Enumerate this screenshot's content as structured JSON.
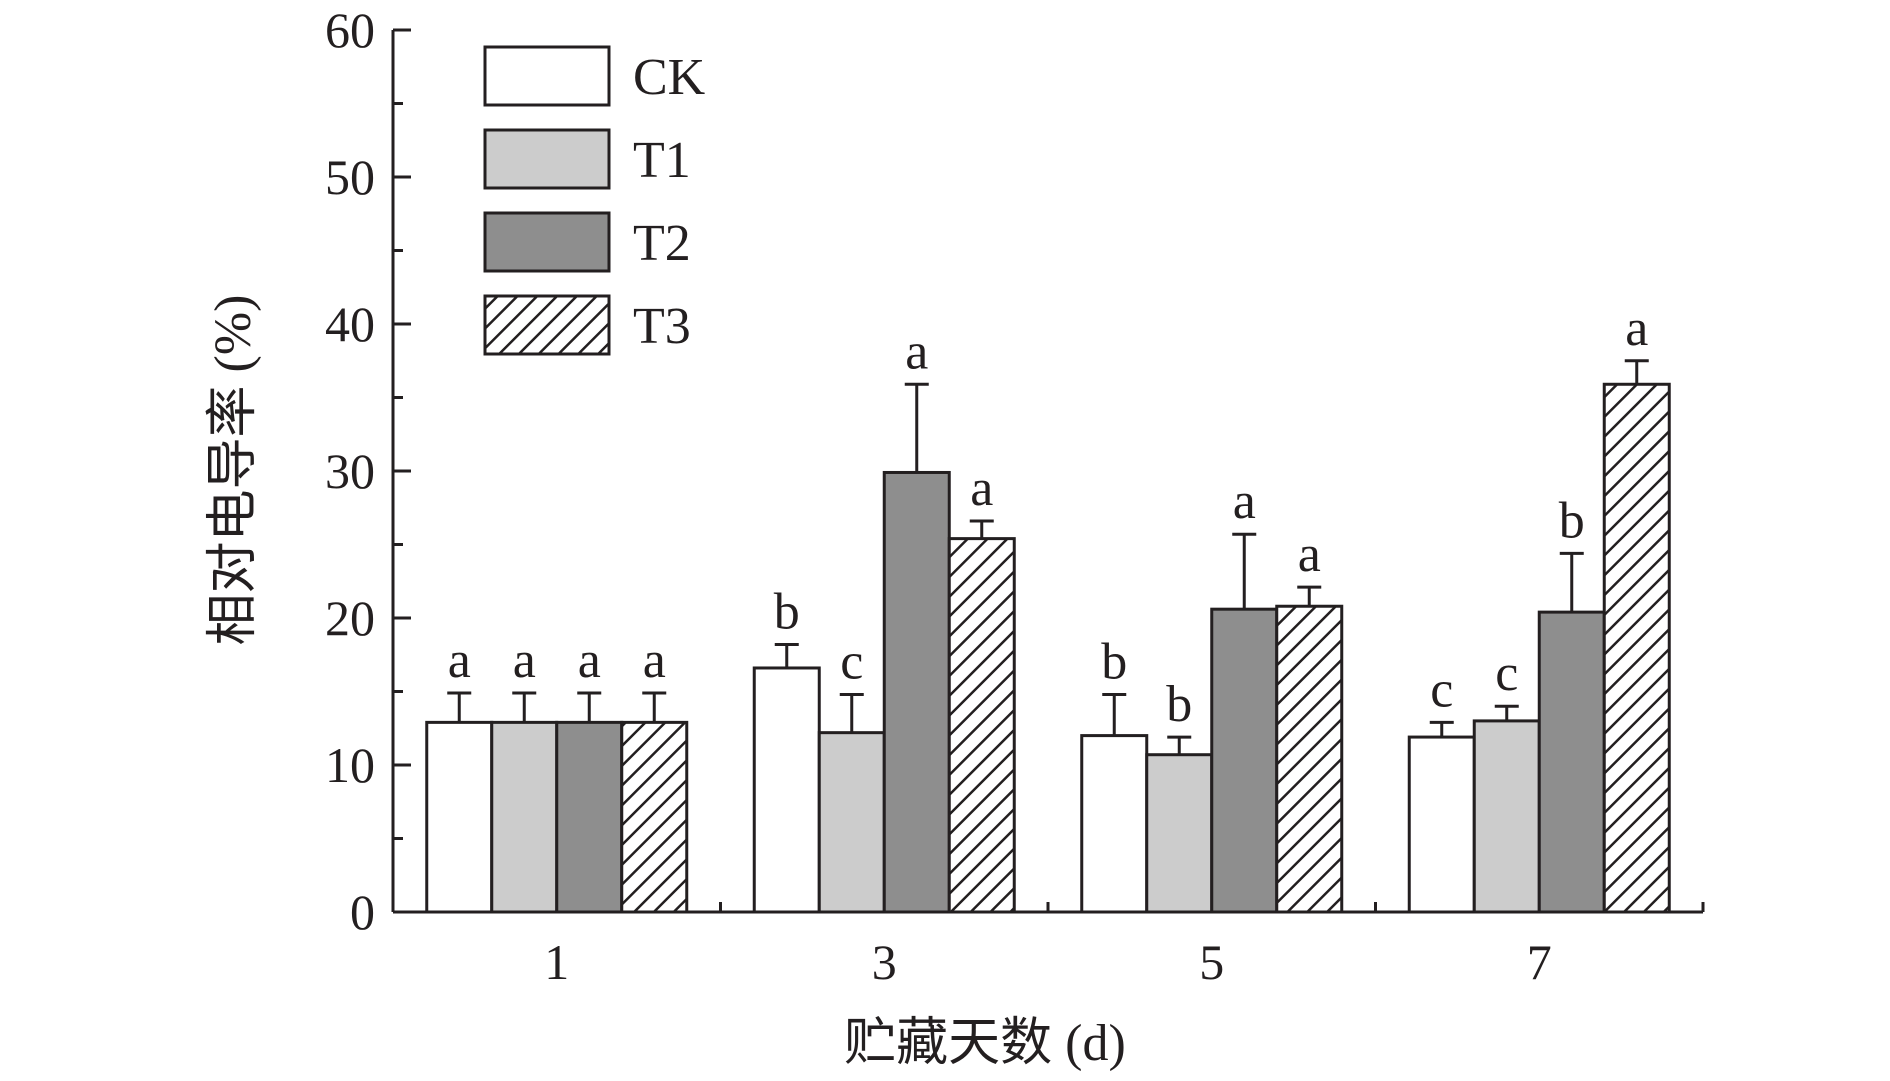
{
  "chart_data": {
    "type": "bar",
    "xlabel": "贮藏天数 (d)",
    "ylabel": "相对电导率 (%)",
    "ylim": [
      0,
      60
    ],
    "yticks": [
      "0",
      "10",
      "20",
      "30",
      "40",
      "50",
      "60"
    ],
    "categories": [
      "1",
      "3",
      "5",
      "7"
    ],
    "series": [
      {
        "name": "CK",
        "fill": "#ffffff",
        "pattern": "none",
        "values": [
          12.9,
          16.6,
          12.0,
          11.9
        ],
        "errors": [
          2.0,
          1.6,
          2.8,
          1.0
        ],
        "letters": [
          "a",
          "b",
          "b",
          "c"
        ]
      },
      {
        "name": "T1",
        "fill": "#cccccc",
        "pattern": "none",
        "values": [
          12.9,
          12.2,
          10.7,
          13.0
        ],
        "errors": [
          2.0,
          2.6,
          1.2,
          1.0
        ],
        "letters": [
          "a",
          "c",
          "b",
          "c"
        ]
      },
      {
        "name": "T2",
        "fill": "#8e8e8e",
        "pattern": "none",
        "values": [
          12.9,
          29.9,
          20.6,
          20.4
        ],
        "errors": [
          2.0,
          6.0,
          5.1,
          4.0
        ],
        "letters": [
          "a",
          "a",
          "a",
          "b"
        ]
      },
      {
        "name": "T3",
        "fill": "#ffffff",
        "pattern": "diagonal-hatch",
        "values": [
          12.9,
          25.4,
          20.8,
          35.9
        ],
        "errors": [
          2.0,
          1.2,
          1.3,
          1.6
        ],
        "letters": [
          "a",
          "a",
          "a",
          "a"
        ]
      }
    ],
    "legend": {
      "position": "top-left"
    },
    "grid": false
  }
}
